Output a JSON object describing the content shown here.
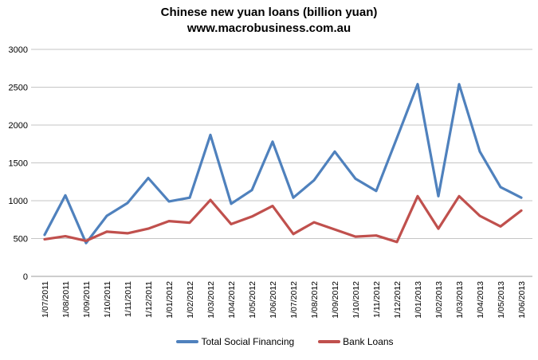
{
  "header": {
    "title": "Chinese new yuan loans (billion yuan)",
    "subtitle": "www.macrobusiness.com.au"
  },
  "chart_data": {
    "type": "line",
    "title": "Chinese new yuan loans (billion yuan)",
    "subtitle": "www.macrobusiness.com.au",
    "categories": [
      "1/07/2011",
      "1/08/2011",
      "1/09/2011",
      "1/10/2011",
      "1/11/2011",
      "1/12/2011",
      "1/01/2012",
      "1/02/2012",
      "1/03/2012",
      "1/04/2012",
      "1/05/2012",
      "1/06/2012",
      "1/07/2012",
      "1/08/2012",
      "1/09/2012",
      "1/10/2012",
      "1/11/2012",
      "1/12/2012",
      "1/01/2013",
      "1/02/2013",
      "1/03/2013",
      "1/04/2013",
      "1/05/2013",
      "1/06/2013"
    ],
    "series": [
      {
        "name": "Total Social Financing",
        "color": "#4F81BD",
        "values": [
          550,
          1070,
          440,
          800,
          970,
          1300,
          990,
          1040,
          1870,
          960,
          1140,
          1780,
          1040,
          1270,
          1650,
          1290,
          1130,
          1830,
          2540,
          1060,
          2540,
          1650,
          1180,
          1040
        ]
      },
      {
        "name": "Bank Loans",
        "color": "#C0504D",
        "values": [
          490,
          530,
          470,
          590,
          570,
          630,
          730,
          710,
          1010,
          690,
          790,
          930,
          560,
          715,
          620,
          525,
          540,
          455,
          1060,
          630,
          1060,
          800,
          660,
          870
        ]
      }
    ],
    "ylim": [
      0,
      3000
    ],
    "ytick_interval": 500,
    "yticks": [
      0,
      500,
      1000,
      1500,
      2000,
      2500,
      3000
    ],
    "xlabel": "",
    "ylabel": "",
    "grid": "horizontal",
    "legend_position": "bottom",
    "colors": {
      "gridline": "#C6C6C6",
      "axis": "#9B9B9B",
      "text": "#000000"
    }
  },
  "legend": {
    "items": [
      {
        "label": "Total Social Financing",
        "color": "#4F81BD"
      },
      {
        "label": "Bank Loans",
        "color": "#C0504D"
      }
    ]
  }
}
